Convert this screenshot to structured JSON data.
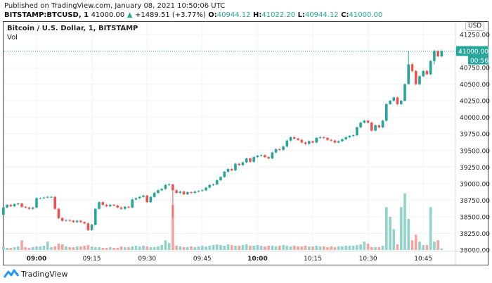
{
  "header": {
    "published": "Published on TradingView.com, January 08, 2021 10:50:06 UTC",
    "symbol": "BITSTAMP:BTCUSD, 1",
    "last": "41000.00",
    "change": "+1489.51 (+3.77%)",
    "o_label": "O:",
    "o": "40944.12",
    "h_label": "H:",
    "h": "41022.20",
    "l_label": "L:",
    "l": "40944.12",
    "c_label": "C:",
    "c": "41000.00"
  },
  "legend": {
    "title": "Bitcoin / U.S. Dollar, 1, BITSTAMP",
    "vol": "Vol"
  },
  "currency": "USD",
  "last_price_label": "41000.00",
  "countdown": "00:56",
  "brand": "TradingView",
  "colors": {
    "up": "#26a69a",
    "down": "#ef5350",
    "vol_up": "#8fd3c9",
    "vol_down": "#f4a3a1"
  },
  "chart_data": {
    "type": "candlestick",
    "ylim": [
      38000,
      41250
    ],
    "y_ticks": [
      "41250.00",
      "41000.00",
      "40750.00",
      "40500.00",
      "40250.00",
      "40000.00",
      "39750.00",
      "39500.00",
      "39250.00",
      "39000.00",
      "38750.00",
      "38500.00",
      "38250.00",
      "38000.00"
    ],
    "x_ticks": [
      "09:00",
      "09:15",
      "09:30",
      "09:45",
      "10:00",
      "10:15",
      "10:30",
      "10:45"
    ],
    "start_time": "08:51",
    "interval_minutes": 1,
    "first_open": 38530,
    "close": [
      38640,
      38680,
      38660,
      38690,
      38700,
      38650,
      38640,
      38620,
      38640,
      38780,
      38780,
      38790,
      38800,
      38800,
      38620,
      38480,
      38440,
      38450,
      38440,
      38420,
      38440,
      38420,
      38400,
      38300,
      38380,
      38620,
      38720,
      38680,
      38660,
      38680,
      38670,
      38640,
      38620,
      38650,
      38640,
      38760,
      38780,
      38800,
      38820,
      38720,
      38800,
      38860,
      38900,
      38920,
      38980,
      38990,
      38900,
      38860,
      38880,
      38840,
      38870,
      38860,
      38880,
      38890,
      38900,
      38940,
      38980,
      38990,
      39050,
      39100,
      39180,
      39220,
      39200,
      39300,
      39280,
      39320,
      39380,
      39330,
      39400,
      39420,
      39430,
      39400,
      39380,
      39470,
      39520,
      39510,
      39560,
      39650,
      39700,
      39680,
      39660,
      39620,
      39600,
      39640,
      39620,
      39690,
      39700,
      39690,
      39660,
      39650,
      39620,
      39640,
      39670,
      39700,
      39720,
      39730,
      39850,
      39920,
      39950,
      39920,
      39800,
      39880,
      39850,
      39950,
      40200,
      40250,
      40300,
      40200,
      40250,
      40500,
      40800,
      40700,
      40500,
      40620,
      40700,
      40650,
      40850,
      41000,
      40920,
      41000
    ],
    "wick_overrides": {
      "46": [
        38990,
        38480
      ],
      "110": [
        41000,
        40500
      ],
      "117": [
        41020,
        40800
      ]
    },
    "volume": [
      4,
      3,
      3,
      4,
      5,
      14,
      4,
      3,
      4,
      5,
      5,
      6,
      12,
      4,
      5,
      9,
      8,
      5,
      4,
      4,
      5,
      5,
      6,
      7,
      5,
      4,
      4,
      3,
      3,
      4,
      3,
      3,
      5,
      4,
      4,
      5,
      6,
      5,
      6,
      5,
      4,
      4,
      5,
      7,
      14,
      10,
      65,
      6,
      5,
      4,
      4,
      5,
      4,
      5,
      6,
      5,
      6,
      7,
      8,
      7,
      6,
      8,
      7,
      6,
      6,
      7,
      8,
      6,
      6,
      7,
      6,
      5,
      6,
      6,
      5,
      6,
      7,
      6,
      5,
      6,
      5,
      5,
      6,
      5,
      5,
      6,
      5,
      5,
      4,
      5,
      4,
      5,
      5,
      6,
      6,
      6,
      7,
      8,
      12,
      9,
      4,
      4,
      4,
      6,
      62,
      48,
      30,
      8,
      62,
      82,
      45,
      14,
      22,
      12,
      7,
      7,
      62,
      12,
      14,
      2
    ]
  }
}
